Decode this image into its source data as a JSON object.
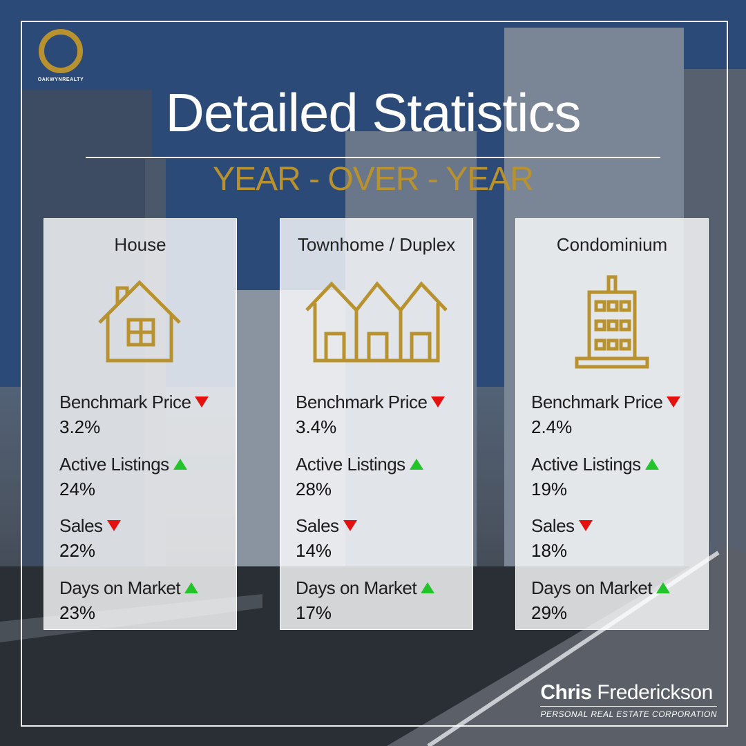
{
  "brand": {
    "logo_text": "OAKWYNREALTY",
    "gold": "#b8922e"
  },
  "header": {
    "title": "Detailed Statistics",
    "subtitle": "YEAR - OVER - YEAR"
  },
  "cards": [
    {
      "title": "House",
      "icon": "house-icon",
      "metrics": [
        {
          "label": "Benchmark Price",
          "value": "3.2%",
          "direction": "down"
        },
        {
          "label": "Active Listings",
          "value": "24%",
          "direction": "up"
        },
        {
          "label": "Sales",
          "value": "22%",
          "direction": "down"
        },
        {
          "label": "Days on Market",
          "value": "23%",
          "direction": "up"
        }
      ]
    },
    {
      "title": "Townhome / Duplex",
      "icon": "townhome-icon",
      "metrics": [
        {
          "label": "Benchmark Price",
          "value": "3.4%",
          "direction": "down"
        },
        {
          "label": "Active Listings",
          "value": "28%",
          "direction": "up"
        },
        {
          "label": "Sales",
          "value": "14%",
          "direction": "down"
        },
        {
          "label": "Days on Market",
          "value": "17%",
          "direction": "up"
        }
      ]
    },
    {
      "title": "Condominium",
      "icon": "condo-icon",
      "metrics": [
        {
          "label": "Benchmark Price",
          "value": "2.4%",
          "direction": "down"
        },
        {
          "label": "Active Listings",
          "value": "19%",
          "direction": "up"
        },
        {
          "label": "Sales",
          "value": "18%",
          "direction": "down"
        },
        {
          "label": "Days on Market",
          "value": "29%",
          "direction": "up"
        }
      ]
    }
  ],
  "colors": {
    "down": "#e5110f",
    "up": "#22c42a"
  },
  "signature": {
    "first_name": "Chris",
    "last_name": "Frederickson",
    "tagline": "PERSONAL REAL ESTATE CORPORATION"
  }
}
